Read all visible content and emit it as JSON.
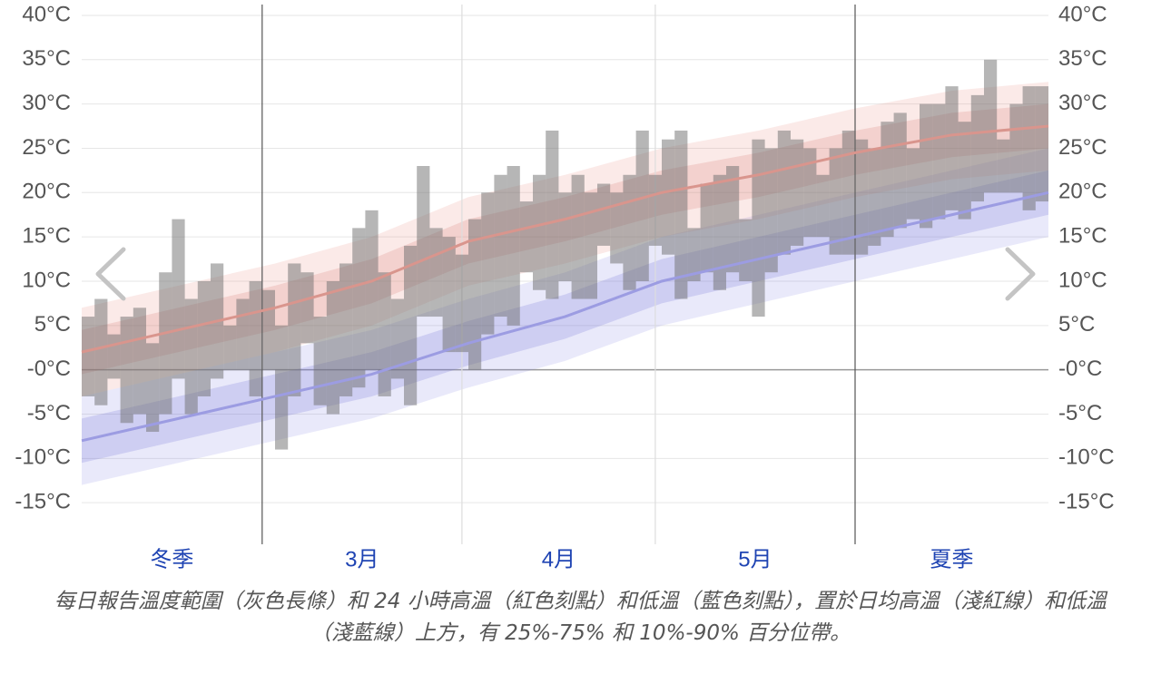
{
  "chart_data": {
    "type": "range-bars",
    "caption": "每日報告溫度範圍（灰色長條）和 24 小時高溫（紅色刻點）和低溫（藍色刻點），置於日均高溫（淺紅線）和低溫（淺藍線）上方，有 25%-75% 和 10%-90% 百分位帶。",
    "periods": [
      {
        "label": "冬季",
        "days": 28,
        "season": true
      },
      {
        "label": "3月",
        "days": 31,
        "season": false
      },
      {
        "label": "4月",
        "days": 30,
        "season": false
      },
      {
        "label": "5月",
        "days": 31,
        "season": false
      },
      {
        "label": "夏季",
        "days": 30,
        "season": true
      }
    ],
    "xlim": [
      0,
      150
    ],
    "ylim": [
      -20,
      41
    ],
    "yticks": [
      {
        "value": -15,
        "label": "-15°C"
      },
      {
        "value": -10,
        "label": "-10°C"
      },
      {
        "value": -5,
        "label": "-5°C"
      },
      {
        "value": 0,
        "label": "-0°C"
      },
      {
        "value": 5,
        "label": "5°C"
      },
      {
        "value": 10,
        "label": "10°C"
      },
      {
        "value": 15,
        "label": "15°C"
      },
      {
        "value": 20,
        "label": "20°C"
      },
      {
        "value": 25,
        "label": "25°C"
      },
      {
        "value": 30,
        "label": "30°C"
      },
      {
        "value": 35,
        "label": "35°C"
      },
      {
        "value": 40,
        "label": "40°C"
      }
    ],
    "grid": true,
    "bars": {
      "color": "rgba(110,110,110,0.5)",
      "x": [
        0,
        2,
        4,
        6,
        8,
        10,
        12,
        14,
        16,
        18,
        20,
        22,
        24,
        26,
        28,
        30,
        32,
        34,
        36,
        38,
        40,
        42,
        44,
        46,
        48,
        50,
        52,
        54,
        56,
        58,
        60,
        62,
        64,
        66,
        68,
        70,
        72,
        74,
        76,
        78,
        80,
        82,
        84,
        86,
        88,
        90,
        92,
        94,
        96,
        98,
        100,
        102,
        104,
        106,
        108,
        110,
        112,
        114,
        116,
        118,
        120,
        122,
        124,
        126,
        128,
        130,
        132,
        134,
        136,
        138,
        140,
        142,
        144,
        146,
        148
      ],
      "low": [
        -3,
        -4,
        -1,
        -6,
        -5,
        -7,
        -5,
        -1,
        -5,
        -3,
        -1,
        0,
        0,
        -3,
        0,
        -9,
        -3,
        3,
        -4,
        -5,
        -3,
        -2,
        0,
        -3,
        -1,
        -4,
        6,
        6,
        2,
        2,
        0,
        4,
        6,
        5,
        11,
        9,
        8,
        10,
        8,
        8,
        14,
        12,
        9,
        10,
        14,
        13,
        8,
        10,
        11,
        9,
        11,
        10,
        6,
        11,
        13,
        14,
        15,
        15,
        13,
        13,
        13,
        14,
        15,
        16,
        17,
        16,
        17,
        18,
        17,
        19,
        20,
        20,
        20,
        18,
        19
      ],
      "high": [
        6,
        8,
        4,
        6,
        7,
        3,
        11,
        17,
        8,
        10,
        12,
        5,
        8,
        10,
        9,
        5,
        12,
        11,
        6,
        10,
        12,
        16,
        18,
        11,
        8,
        14,
        23,
        16,
        15,
        13,
        17,
        20,
        22,
        23,
        19,
        22,
        27,
        20,
        22,
        20,
        21,
        20,
        22,
        27,
        22,
        26,
        27,
        16,
        21,
        22,
        23,
        17,
        26,
        25,
        27,
        26,
        25,
        22,
        25,
        27,
        26,
        25,
        28,
        29,
        25,
        30,
        30,
        32,
        28,
        31,
        35,
        26,
        30,
        32,
        32
      ]
    },
    "bands": {
      "x": [
        0,
        15,
        30,
        45,
        60,
        75,
        90,
        105,
        120,
        135,
        150
      ],
      "high": {
        "line_color": "#d9958d",
        "inner_color": "rgba(215,125,115,0.22)",
        "outer_color": "rgba(235,150,140,0.2)",
        "avg": [
          2,
          4.5,
          7,
          10,
          14.5,
          17,
          20,
          22,
          24.5,
          26.5,
          27.5
        ],
        "p10": [
          -3,
          -0.5,
          2,
          5,
          9.5,
          12,
          15,
          17,
          19.5,
          21.5,
          22.5
        ],
        "p25": [
          -0.5,
          2,
          4.5,
          7.5,
          12,
          14.5,
          17.5,
          19.5,
          22,
          24,
          25
        ],
        "p75": [
          4.5,
          7,
          9.5,
          12.5,
          17,
          19.5,
          22.5,
          24.5,
          27,
          29,
          30
        ],
        "p90": [
          7,
          9.5,
          12,
          15,
          19.5,
          22,
          25,
          27,
          29.5,
          31.5,
          32.5
        ]
      },
      "low": {
        "line_color": "#9c9ce2",
        "inner_color": "rgba(110,110,215,0.22)",
        "outer_color": "rgba(135,135,230,0.18)",
        "avg": [
          -8,
          -5.5,
          -3,
          -0.5,
          3,
          6,
          10,
          12.5,
          15,
          17.5,
          20
        ],
        "p10": [
          -13,
          -10.5,
          -8,
          -5.5,
          -2,
          1,
          5,
          7.5,
          10,
          12.5,
          15
        ],
        "p25": [
          -10.5,
          -8,
          -5.5,
          -3,
          0.5,
          3.5,
          7.5,
          10,
          12.5,
          15,
          17.5
        ],
        "p75": [
          -5.5,
          -3,
          -0.5,
          2,
          5.5,
          8.5,
          12.5,
          15,
          17.5,
          20,
          22.5
        ],
        "p90": [
          -3,
          -0.5,
          2,
          4.5,
          8,
          11,
          15,
          17.5,
          20,
          22.5,
          25
        ]
      }
    }
  }
}
